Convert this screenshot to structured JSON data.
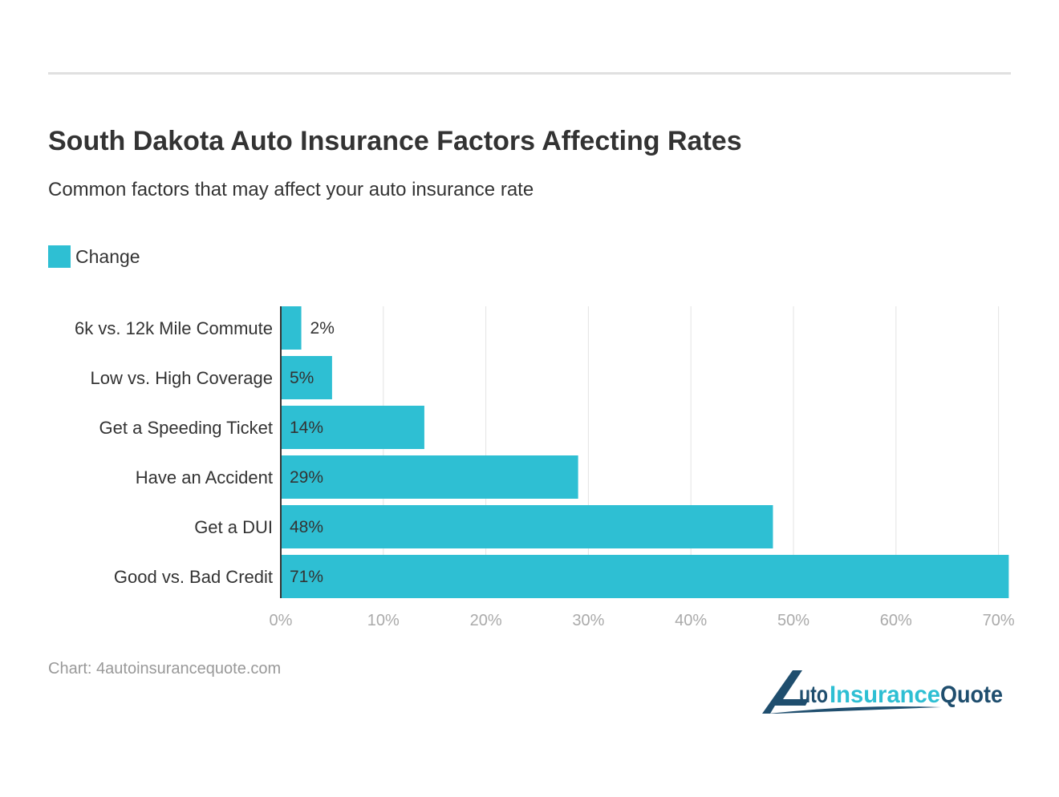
{
  "title": "South Dakota Auto Insurance Factors Affecting Rates",
  "subtitle": "Common factors that may affect your auto insurance rate",
  "source": "Chart: 4autoinsurancequote.com",
  "logo_text": "4AutoInsuranceQuote",
  "colors": {
    "bar": "#2ebfd3",
    "logo_dark": "#1f4e6e",
    "logo_light": "#2ebfd3"
  },
  "chart_data": {
    "type": "bar",
    "orientation": "horizontal",
    "title": "South Dakota Auto Insurance Factors Affecting Rates",
    "subtitle": "Common factors that may affect your auto insurance rate",
    "categories": [
      "6k vs. 12k Mile Commute",
      "Low vs. High Coverage",
      "Get a Speeding Ticket",
      "Have an Accident",
      "Get a DUI",
      "Good vs. Bad Credit"
    ],
    "series": [
      {
        "name": "Change",
        "values": [
          2,
          5,
          14,
          29,
          48,
          71
        ],
        "labels": [
          "2%",
          "5%",
          "14%",
          "29%",
          "48%",
          "71%"
        ]
      }
    ],
    "xlim": [
      0,
      71
    ],
    "xticks": [
      0,
      10,
      20,
      30,
      40,
      50,
      60,
      70
    ],
    "xtick_labels": [
      "0%",
      "10%",
      "20%",
      "30%",
      "40%",
      "50%",
      "60%",
      "70%"
    ],
    "grid": true,
    "legend": "top-left"
  }
}
